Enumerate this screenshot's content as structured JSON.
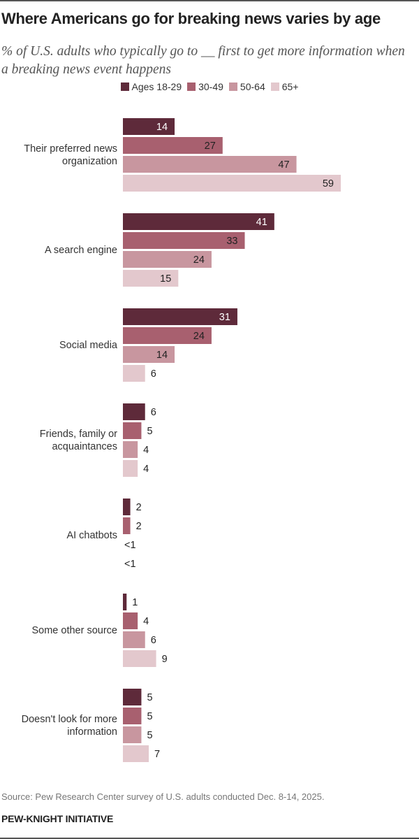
{
  "title": "Where Americans go for breaking news varies by age",
  "subtitle": "% of U.S. adults who typically go to __ first to get more information when a breaking news event happens",
  "source": "Source: Pew Research Center survey of U.S. adults conducted Dec. 8-14, 2025.",
  "brand": "PEW-KNIGHT INITIATIVE",
  "chart_data": {
    "type": "bar",
    "orientation": "horizontal",
    "xlim": [
      0,
      59
    ],
    "legend_placement": "top-center",
    "grid": false,
    "categories": [
      "Their preferred news organization",
      "A search engine",
      "Social media",
      "Friends, family or acquaintances",
      "AI chatbots",
      "Some other source",
      "Doesn't look for more information"
    ],
    "series": [
      {
        "name": "Ages 18-29",
        "color": "#5e2a3a",
        "label_color": "#ffffff",
        "values": [
          14,
          41,
          31,
          6,
          2,
          1,
          5
        ],
        "labels": [
          "14",
          "41",
          "31",
          "6",
          "2",
          "1",
          "5"
        ]
      },
      {
        "name": "30-49",
        "color": "#a8606f",
        "label_color": "#222222",
        "values": [
          27,
          33,
          24,
          5,
          2,
          4,
          5
        ],
        "labels": [
          "27",
          "33",
          "24",
          "5",
          "2",
          "4",
          "5"
        ]
      },
      {
        "name": "50-64",
        "color": "#c8969f",
        "label_color": "#222222",
        "values": [
          47,
          24,
          14,
          4,
          0,
          6,
          5
        ],
        "labels": [
          "47",
          "24",
          "14",
          "4",
          "<1",
          "6",
          "5"
        ]
      },
      {
        "name": "65+",
        "color": "#e3c8cd",
        "label_color": "#222222",
        "values": [
          59,
          15,
          6,
          4,
          0,
          9,
          7
        ],
        "labels": [
          "59",
          "15",
          "6",
          "4",
          "<1",
          "9",
          "7"
        ]
      }
    ]
  }
}
